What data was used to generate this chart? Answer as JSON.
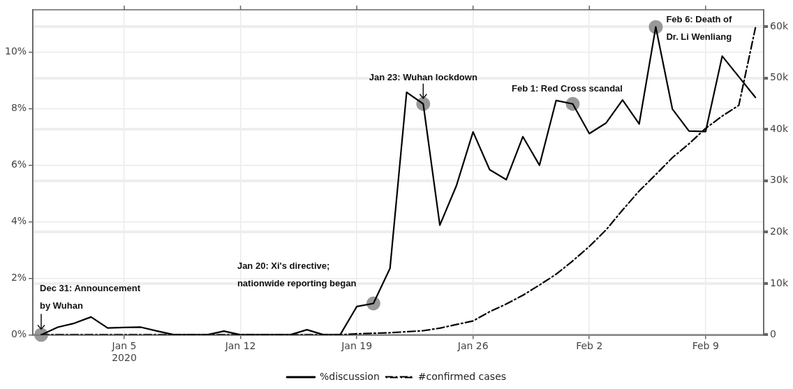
{
  "chart_data": {
    "type": "line",
    "x": [
      "2019-12-31",
      "2020-01-01",
      "2020-01-02",
      "2020-01-03",
      "2020-01-04",
      "2020-01-05",
      "2020-01-06",
      "2020-01-07",
      "2020-01-08",
      "2020-01-09",
      "2020-01-10",
      "2020-01-11",
      "2020-01-12",
      "2020-01-13",
      "2020-01-14",
      "2020-01-15",
      "2020-01-16",
      "2020-01-17",
      "2020-01-18",
      "2020-01-19",
      "2020-01-20",
      "2020-01-21",
      "2020-01-22",
      "2020-01-23",
      "2020-01-24",
      "2020-01-25",
      "2020-01-26",
      "2020-01-27",
      "2020-01-28",
      "2020-01-29",
      "2020-01-30",
      "2020-01-31",
      "2020-02-01",
      "2020-02-02",
      "2020-02-03",
      "2020-02-04",
      "2020-02-05",
      "2020-02-06",
      "2020-02-07",
      "2020-02-08",
      "2020-02-09",
      "2020-02-10",
      "2020-02-11",
      "2020-02-12"
    ],
    "series": [
      {
        "name": "%discussion",
        "color": "#000000",
        "line_style": "solid",
        "values": [
          0,
          0.27,
          0.41,
          0.63,
          0.24,
          0.26,
          0.27,
          0.13,
          0,
          0,
          0,
          0.13,
          0,
          0,
          0,
          0,
          0.18,
          0,
          0,
          1.0,
          1.11,
          2.35,
          8.58,
          8.17,
          3.88,
          5.28,
          7.18,
          5.84,
          5.49,
          7.01,
          6.0,
          8.29,
          8.17,
          7.12,
          7.49,
          8.31,
          7.46,
          10.89,
          7.99,
          7.21,
          7.19,
          9.86,
          9.13,
          8.4
        ]
      },
      {
        "name": "#confirmed cases",
        "color": "#000000",
        "line_style": "dashdot",
        "axis": "y2",
        "values": [
          0,
          0,
          0,
          0,
          0,
          0,
          0,
          0,
          0,
          0,
          0,
          0,
          0,
          0,
          0,
          0,
          0,
          0,
          0,
          200,
          300,
          400,
          600,
          800,
          1300,
          2000,
          2700,
          4500,
          6000,
          7700,
          9700,
          11800,
          14400,
          17200,
          20400,
          24300,
          28000,
          31200,
          34500,
          37200,
          40200,
          42600,
          44700,
          59800
        ]
      }
    ],
    "xlim": [
      "2019-12-30T12:00",
      "2020-02-12T12:00"
    ],
    "xticks": [
      {
        "value": "2020-01-05",
        "label": "Jan 5\n2020"
      },
      {
        "value": "2020-01-12",
        "label": "Jan 12"
      },
      {
        "value": "2020-01-19",
        "label": "Jan 19"
      },
      {
        "value": "2020-01-26",
        "label": "Jan 26"
      },
      {
        "value": "2020-02-02",
        "label": "Feb 2"
      },
      {
        "value": "2020-02-09",
        "label": "Feb 9"
      }
    ],
    "ylim": [
      0,
      11.5
    ],
    "yticks": [
      {
        "value": 0,
        "label": "0%"
      },
      {
        "value": 2,
        "label": "2%"
      },
      {
        "value": 4,
        "label": "4%"
      },
      {
        "value": 6,
        "label": "6%"
      },
      {
        "value": 8,
        "label": "8%"
      },
      {
        "value": 10,
        "label": "10%"
      }
    ],
    "y2lim": [
      0,
      63300
    ],
    "y2ticks": [
      0,
      {
        "value": 10000,
        "label": "10k"
      },
      {
        "value": 20000,
        "label": "20k"
      },
      {
        "value": 30000,
        "label": "30k"
      },
      {
        "value": 40000,
        "label": "40k"
      },
      {
        "value": 50000,
        "label": "50k"
      },
      {
        "value": 60000,
        "label": "60k"
      }
    ],
    "annotations": [
      {
        "text": "Dec 31: Announcement\nby Wuhan",
        "x": "2019-12-31",
        "y": 0
      },
      {
        "text": "Jan 20: Xi's directive;\nnationwide reporting began",
        "x": "2020-01-20",
        "y": 1.11
      },
      {
        "text": "Jan 23: Wuhan lockdown",
        "x": "2020-01-23",
        "y": 8.17
      },
      {
        "text": "Feb 1: Red Cross scandal",
        "x": "2020-02-01",
        "y": 8.17
      },
      {
        "text": "Feb 6: Death of\nDr. Li Wenliang",
        "x": "2020-02-06",
        "y": 10.89
      }
    ],
    "grid": true,
    "legend": "bottom",
    "marker": "none"
  }
}
